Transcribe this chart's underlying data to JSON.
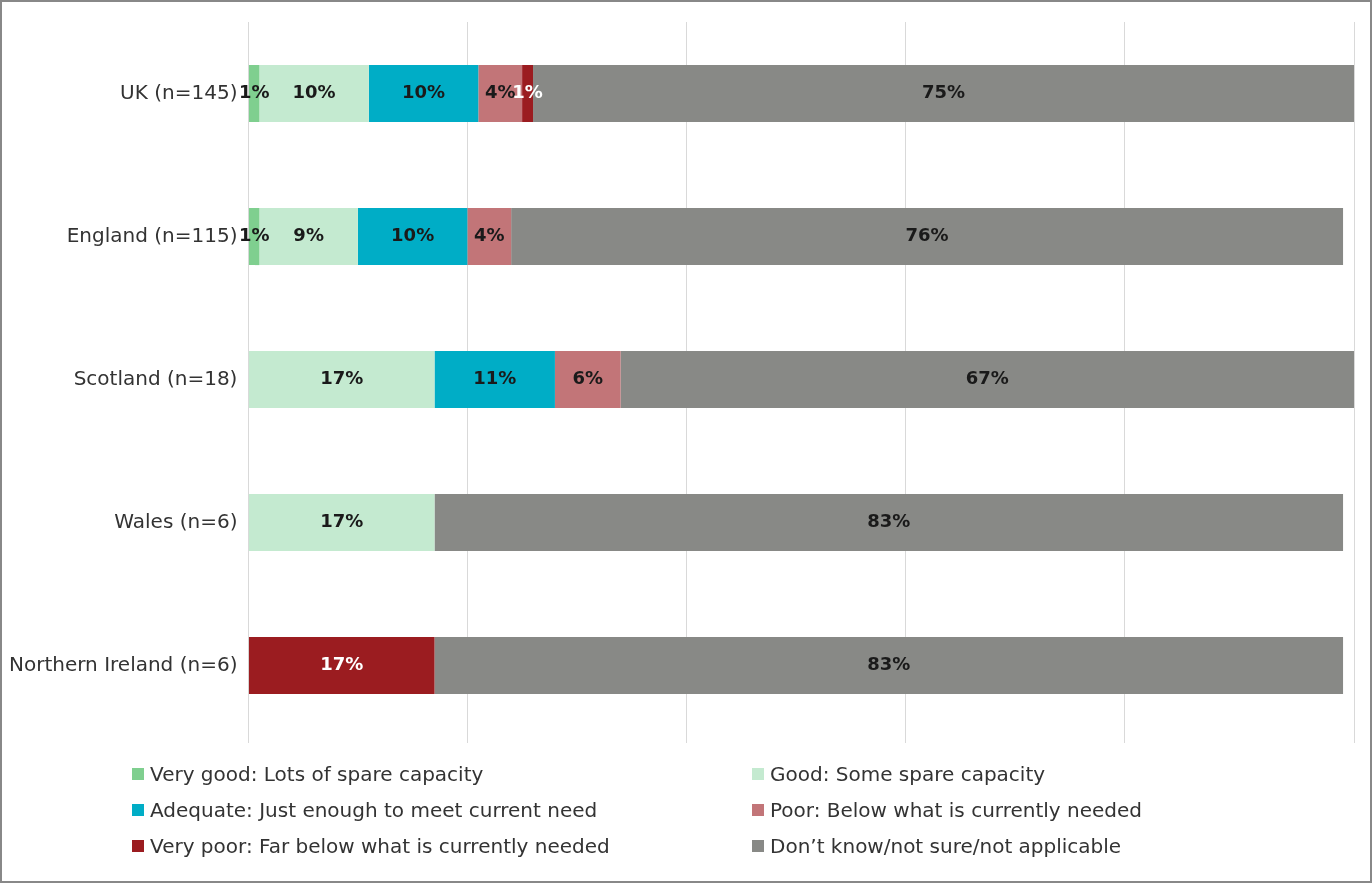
{
  "chart_data": {
    "type": "bar",
    "orientation": "horizontal",
    "stacked": true,
    "categories": [
      "UK (n=145)",
      "England (n=115)",
      "Scotland (n=18)",
      "Wales (n=6)",
      "Northern Ireland (n=6)"
    ],
    "series": [
      {
        "name": "Very good: Lots of spare capacity",
        "color": "#7fcf8f",
        "values": [
          1,
          1,
          null,
          null,
          null
        ],
        "value_labels": [
          "1%",
          "1%",
          null,
          null,
          null
        ]
      },
      {
        "name": "Good: Some spare capacity",
        "color": "#c4ead0",
        "values": [
          10,
          9,
          17,
          17,
          null
        ],
        "value_labels": [
          "10%",
          "9%",
          "17%",
          "17%",
          null
        ]
      },
      {
        "name": "Adequate: Just enough to meet current need",
        "color": "#00adc6",
        "values": [
          10,
          10,
          11,
          null,
          null
        ],
        "value_labels": [
          "10%",
          "10%",
          "11%",
          null,
          null
        ]
      },
      {
        "name": "Poor: Below what is currently needed",
        "color": "#c27578",
        "values": [
          4,
          4,
          6,
          null,
          null
        ],
        "value_labels": [
          "4%",
          "4%",
          "6%",
          null,
          null
        ]
      },
      {
        "name": "Very poor: Far below what is currently needed",
        "color": "#9b1c20",
        "values": [
          1,
          null,
          null,
          null,
          17
        ],
        "value_labels": [
          "1%",
          null,
          null,
          null,
          "17%"
        ]
      },
      {
        "name": "Don’t know/not sure/not applicable",
        "color": "#888986",
        "values": [
          75,
          76,
          67,
          83,
          83
        ],
        "value_labels": [
          "75%",
          "76%",
          "67%",
          "83%",
          "83%"
        ]
      }
    ],
    "tick_labels": "y",
    "grid": "x",
    "legend": "bottom"
  }
}
